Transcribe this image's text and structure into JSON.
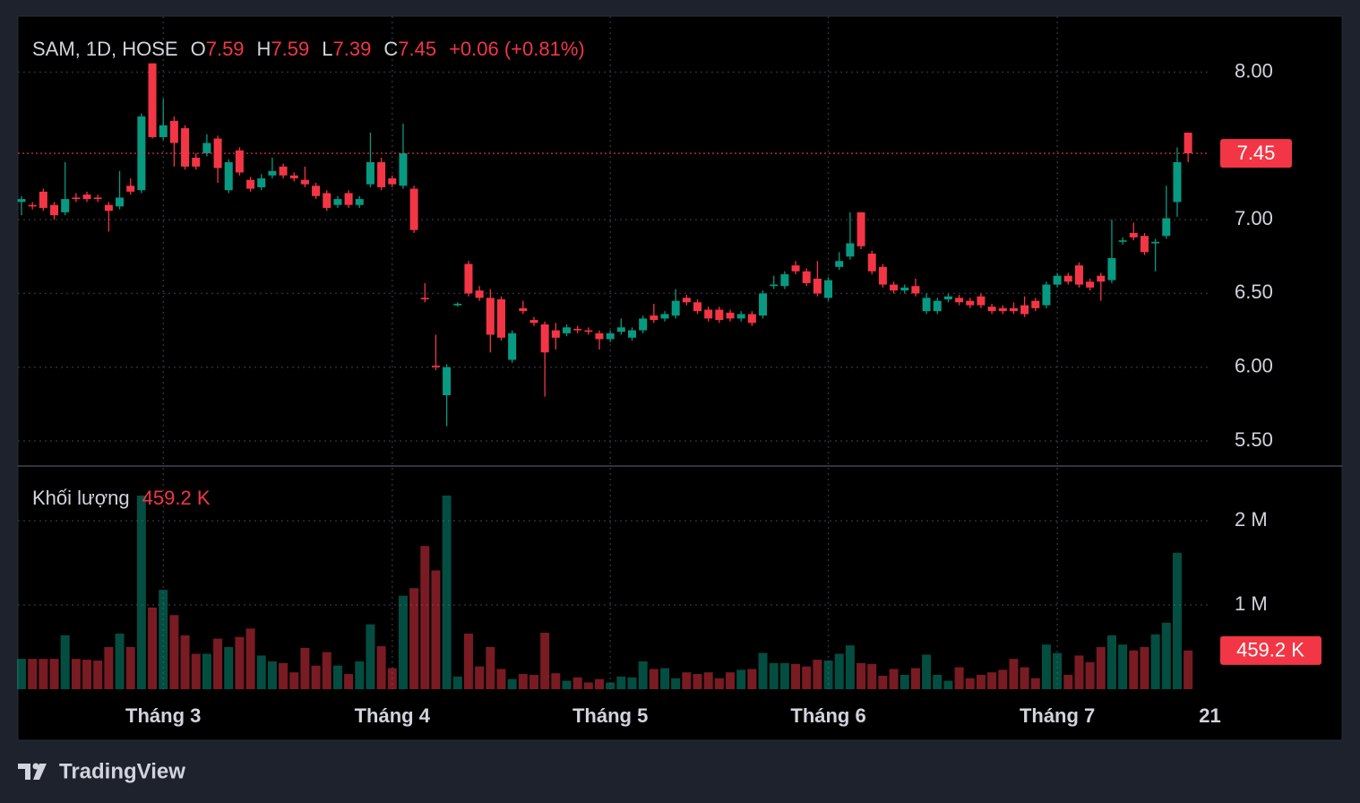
{
  "chart_data": {
    "type": "candlestick",
    "title": "SAM, 1D, HOSE",
    "ohlc_labels": [
      "O",
      "H",
      "L",
      "C"
    ],
    "change": "+0.06 (+0.81%)",
    "volume_title": "Khối lượng",
    "volume_last_label": "459.2 K",
    "brand": "TradingView",
    "up_color": "#089981",
    "down_color": "#f23645",
    "grid": true,
    "xlim": [
      -0.33,
      108.96
    ],
    "xticks": [
      {
        "value": 13,
        "label": "Tháng 3"
      },
      {
        "value": 34,
        "label": "Tháng 4"
      },
      {
        "value": 54,
        "label": "Tháng 5"
      },
      {
        "value": 74,
        "label": "Tháng 6"
      },
      {
        "value": 95,
        "label": "Tháng 7"
      },
      {
        "value": 109,
        "label": "21"
      }
    ],
    "ylim": [
      5.33,
      8.38
    ],
    "yticks": [
      {
        "value": 5.5,
        "label": "5.50"
      },
      {
        "value": 6,
        "label": "6.00"
      },
      {
        "value": 6.5,
        "label": "6.50"
      },
      {
        "value": 7,
        "label": "7.00"
      },
      {
        "value": 8,
        "label": "8.00"
      }
    ],
    "volume_ylim": [
      0,
      2650000
    ],
    "volume_ticks": [
      {
        "value": 1000000,
        "label": "1 M"
      },
      {
        "value": 2000000,
        "label": "2 M"
      }
    ],
    "open": [
      7.12,
      7.1,
      7.19,
      7.1,
      7.05,
      7.15,
      7.17,
      7.15,
      7.1,
      7.09,
      7.23,
      7.2,
      8.06,
      7.56,
      7.67,
      7.62,
      7.42,
      7.45,
      7.55,
      7.2,
      7.47,
      7.27,
      7.22,
      7.3,
      7.36,
      7.3,
      7.27,
      7.23,
      7.18,
      7.1,
      7.18,
      7.1,
      7.24,
      7.39,
      7.28,
      7.23,
      7.21,
      6.47,
      6.01,
      5.81,
      6.42,
      6.7,
      6.52,
      6.47,
      6.46,
      6.05,
      6.4,
      6.32,
      6.29,
      6.25,
      6.23,
      6.26,
      6.25,
      6.23,
      6.19,
      6.24,
      6.2,
      6.25,
      6.35,
      6.33,
      6.35,
      6.47,
      6.44,
      6.39,
      6.39,
      6.37,
      6.33,
      6.36,
      6.35,
      6.55,
      6.55,
      6.69,
      6.65,
      6.6,
      6.47,
      6.68,
      6.75,
      7.05,
      6.77,
      6.68,
      6.56,
      6.52,
      6.55,
      6.38,
      6.38,
      6.46,
      6.47,
      6.45,
      6.48,
      6.41,
      6.4,
      6.4,
      6.42,
      6.45,
      6.42,
      6.56,
      6.62,
      6.69,
      6.58,
      6.62,
      6.59,
      6.85,
      6.91,
      6.89,
      6.84,
      6.89,
      7.12,
      7.59
    ],
    "high": [
      7.16,
      7.12,
      7.21,
      7.12,
      7.39,
      7.18,
      7.19,
      7.17,
      7.12,
      7.33,
      7.28,
      7.72,
      8.06,
      7.82,
      7.7,
      7.64,
      7.45,
      7.58,
      7.57,
      7.41,
      7.49,
      7.29,
      7.31,
      7.42,
      7.38,
      7.32,
      7.36,
      7.25,
      7.2,
      7.16,
      7.2,
      7.16,
      7.59,
      7.42,
      7.3,
      7.65,
      7.23,
      6.57,
      6.22,
      6.02,
      6.44,
      6.72,
      6.55,
      6.53,
      6.48,
      6.25,
      6.45,
      6.34,
      6.31,
      6.3,
      6.29,
      6.28,
      6.27,
      6.25,
      6.25,
      6.33,
      6.27,
      6.35,
      6.43,
      6.38,
      6.53,
      6.49,
      6.46,
      6.41,
      6.41,
      6.39,
      6.38,
      6.38,
      6.52,
      6.62,
      6.65,
      6.72,
      6.67,
      6.72,
      6.61,
      6.78,
      7.05,
      7.05,
      6.79,
      6.7,
      6.58,
      6.56,
      6.6,
      6.5,
      6.47,
      6.5,
      6.49,
      6.47,
      6.5,
      6.43,
      6.42,
      6.44,
      6.48,
      6.47,
      6.58,
      6.64,
      6.64,
      6.71,
      6.6,
      6.64,
      7.0,
      6.88,
      6.98,
      6.91,
      6.87,
      7.23,
      7.49,
      7.59
    ],
    "low": [
      7.03,
      7.07,
      7.06,
      7.0,
      7.03,
      7.12,
      7.12,
      7.12,
      6.92,
      7.07,
      7.17,
      7.18,
      7.55,
      7.54,
      7.36,
      7.34,
      7.34,
      7.43,
      7.25,
      7.18,
      7.3,
      7.19,
      7.2,
      7.28,
      7.28,
      7.26,
      7.22,
      7.14,
      7.06,
      7.08,
      7.08,
      7.08,
      7.22,
      7.2,
      7.22,
      7.21,
      6.91,
      6.44,
      5.98,
      5.6,
      6.41,
      6.48,
      6.45,
      6.1,
      6.18,
      6.03,
      6.36,
      6.28,
      5.8,
      6.12,
      6.21,
      6.23,
      6.22,
      6.12,
      6.17,
      6.22,
      6.18,
      6.23,
      6.3,
      6.31,
      6.33,
      6.42,
      6.36,
      6.31,
      6.3,
      6.31,
      6.31,
      6.28,
      6.33,
      6.53,
      6.53,
      6.63,
      6.55,
      6.48,
      6.45,
      6.66,
      6.73,
      6.8,
      6.63,
      6.54,
      6.5,
      6.5,
      6.48,
      6.36,
      6.36,
      6.44,
      6.42,
      6.4,
      6.4,
      6.36,
      6.36,
      6.36,
      6.34,
      6.38,
      6.4,
      6.54,
      6.56,
      6.54,
      6.52,
      6.45,
      6.57,
      6.83,
      6.86,
      6.76,
      6.65,
      6.87,
      7.02,
      7.39
    ],
    "close": [
      7.14,
      7.09,
      7.08,
      7.03,
      7.14,
      7.14,
      7.14,
      7.14,
      7.06,
      7.15,
      7.19,
      7.7,
      7.56,
      7.64,
      7.52,
      7.36,
      7.36,
      7.52,
      7.35,
      7.39,
      7.32,
      7.21,
      7.28,
      7.33,
      7.3,
      7.28,
      7.24,
      7.16,
      7.08,
      7.14,
      7.1,
      7.14,
      7.39,
      7.22,
      7.24,
      7.45,
      6.93,
      6.46,
      6.0,
      6.0,
      6.43,
      6.5,
      6.47,
      6.22,
      6.2,
      6.23,
      6.38,
      6.3,
      6.1,
      6.2,
      6.27,
      6.25,
      6.24,
      6.19,
      6.23,
      6.27,
      6.25,
      6.33,
      6.32,
      6.36,
      6.45,
      6.44,
      6.38,
      6.33,
      6.32,
      6.33,
      6.36,
      6.3,
      6.5,
      6.56,
      6.63,
      6.65,
      6.57,
      6.5,
      6.59,
      6.72,
      6.84,
      6.82,
      6.65,
      6.56,
      6.52,
      6.54,
      6.5,
      6.47,
      6.45,
      6.48,
      6.44,
      6.42,
      6.42,
      6.38,
      6.38,
      6.38,
      6.36,
      6.4,
      6.56,
      6.62,
      6.58,
      6.56,
      6.54,
      6.58,
      6.74,
      6.86,
      6.88,
      6.78,
      6.85,
      7.01,
      7.39,
      7.45
    ],
    "volume": [
      360000,
      360000,
      360000,
      360000,
      640000,
      360000,
      350000,
      340000,
      500000,
      660000,
      500000,
      2300000,
      970000,
      1180000,
      880000,
      640000,
      420000,
      420000,
      600000,
      500000,
      620000,
      720000,
      400000,
      330000,
      310000,
      200000,
      490000,
      280000,
      440000,
      280000,
      180000,
      330000,
      770000,
      510000,
      250000,
      1110000,
      1200000,
      1700000,
      1410000,
      2300000,
      150000,
      660000,
      270000,
      500000,
      240000,
      120000,
      180000,
      170000,
      670000,
      190000,
      100000,
      140000,
      80000,
      120000,
      80000,
      150000,
      140000,
      330000,
      240000,
      250000,
      130000,
      200000,
      180000,
      200000,
      130000,
      200000,
      230000,
      240000,
      430000,
      310000,
      310000,
      300000,
      270000,
      350000,
      340000,
      420000,
      520000,
      310000,
      300000,
      160000,
      240000,
      170000,
      250000,
      410000,
      170000,
      100000,
      260000,
      130000,
      170000,
      200000,
      230000,
      360000,
      260000,
      130000,
      530000,
      430000,
      170000,
      400000,
      320000,
      500000,
      640000,
      530000,
      460000,
      500000,
      650000,
      790000,
      1620000,
      459200
    ]
  }
}
